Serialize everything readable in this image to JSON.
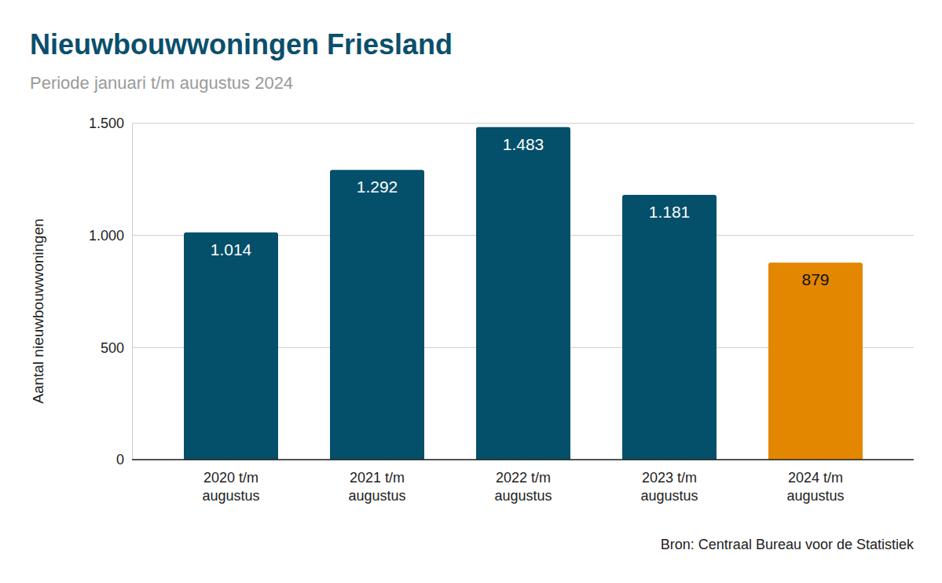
{
  "chart_data": {
    "type": "bar",
    "title": "Nieuwbouwwoningen Friesland",
    "subtitle": "Periode januari t/m augustus 2024",
    "y_label": "Aantal nieuwbouwwoningen",
    "source": "Bron: Centraal Bureau voor de Statistiek",
    "categories": [
      "2020 t/m augustus",
      "2021 t/m augustus",
      "2022 t/m augustus",
      "2023 t/m augustus",
      "2024 t/m augustus"
    ],
    "values": [
      1014,
      1292,
      1483,
      1181,
      879
    ],
    "value_labels": [
      "1.014",
      "1.292",
      "1.483",
      "1.181",
      "879"
    ],
    "colors": [
      "#044f6a",
      "#044f6a",
      "#044f6a",
      "#044f6a",
      "#e38600"
    ],
    "ylim": [
      0,
      1500
    ],
    "yticks": [
      0,
      500,
      {
        "value": 1000,
        "label": "1.000"
      },
      {
        "value": 1500,
        "label": "1.500"
      }
    ],
    "grid": true,
    "data_labels": true
  }
}
